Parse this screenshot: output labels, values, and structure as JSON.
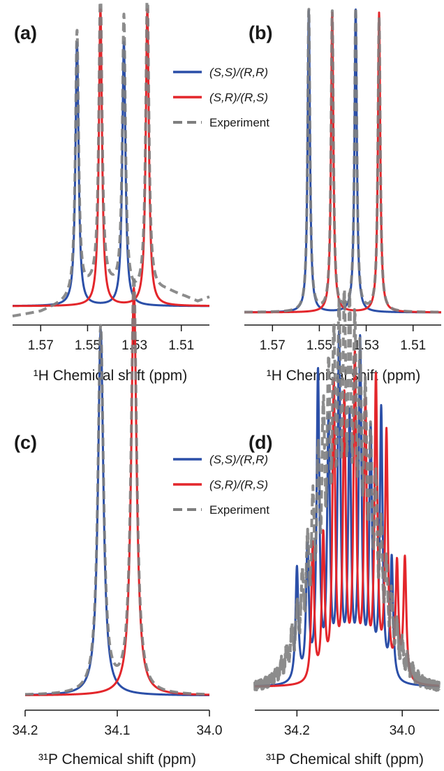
{
  "chart_data": [
    {
      "panel": "(a)",
      "type": "line",
      "xlabel": "¹H Chemical shift (ppm)",
      "xlim": [
        1.582,
        1.498
      ],
      "ylim": [
        0,
        1
      ],
      "x_ticks": [
        1.57,
        1.55,
        1.53,
        1.51
      ],
      "x_tick_labels": [
        "1.57",
        "1.55",
        "1.53",
        "1.51"
      ],
      "legend": true,
      "legend_position": "top-right",
      "series": [
        {
          "name": "(S,S)/(R,R)",
          "color": "#2b4fa8",
          "style": "solid",
          "peaks": [
            {
              "x": 1.5545,
              "height": 0.89,
              "width": 0.0008
            },
            {
              "x": 1.5345,
              "height": 0.89,
              "width": 0.0008
            }
          ],
          "baseline": 0.0
        },
        {
          "name": "(S,R)/(R,S)",
          "color": "#e3262b",
          "style": "solid",
          "peaks": [
            {
              "x": 1.5445,
              "height": 1.0,
              "width": 0.0008
            },
            {
              "x": 1.5245,
              "height": 1.0,
              "width": 0.0008
            }
          ],
          "baseline": 0.0
        },
        {
          "name": "Experiment",
          "color": "#7f7f7f",
          "style": "dashed",
          "peaks": [
            {
              "x": 1.5545,
              "height": 0.89,
              "width": 0.0008
            },
            {
              "x": 1.5445,
              "height": 1.0,
              "width": 0.0008
            },
            {
              "x": 1.5345,
              "height": 0.93,
              "width": 0.0008
            },
            {
              "x": 1.5245,
              "height": 1.02,
              "width": 0.0008
            }
          ],
          "baseline_points": [
            [
              1.582,
              -0.035
            ],
            [
              1.57,
              -0.02
            ],
            [
              1.56,
              0.01
            ],
            [
              1.553,
              0.04
            ],
            [
              1.545,
              0.07
            ],
            [
              1.538,
              0.05
            ],
            [
              1.53,
              0.03
            ],
            [
              1.523,
              0.05
            ],
            [
              1.516,
              0.05
            ],
            [
              1.508,
              0.03
            ],
            [
              1.503,
              0.015
            ],
            [
              1.498,
              0.03
            ]
          ]
        }
      ]
    },
    {
      "panel": "(b)",
      "type": "line",
      "xlabel": "¹H Chemical shift (ppm)",
      "xlim": [
        1.582,
        1.498
      ],
      "ylim": [
        0,
        1
      ],
      "x_ticks": [
        1.57,
        1.55,
        1.53,
        1.51
      ],
      "x_tick_labels": [
        "1.57",
        "1.55",
        "1.53",
        "1.51"
      ],
      "series": [
        {
          "name": "(S,S)/(R,R)",
          "color": "#2b4fa8",
          "style": "solid",
          "peaks": [
            {
              "x": 1.5545,
              "height": 1.0,
              "width": 0.0006
            },
            {
              "x": 1.5345,
              "height": 1.0,
              "width": 0.0006
            }
          ],
          "baseline": 0.0
        },
        {
          "name": "(S,R)/(R,S)",
          "color": "#e3262b",
          "style": "solid",
          "peaks": [
            {
              "x": 1.5445,
              "height": 0.99,
              "width": 0.0006
            },
            {
              "x": 1.5245,
              "height": 0.99,
              "width": 0.0006
            }
          ],
          "baseline": 0.0
        },
        {
          "name": "Experiment",
          "color": "#7f7f7f",
          "style": "dashed",
          "peaks": [
            {
              "x": 1.5545,
              "height": 1.0,
              "width": 0.0006
            },
            {
              "x": 1.5445,
              "height": 0.99,
              "width": 0.0006
            },
            {
              "x": 1.5345,
              "height": 1.0,
              "width": 0.0006
            },
            {
              "x": 1.5245,
              "height": 0.97,
              "width": 0.0006
            }
          ],
          "baseline": 0.0
        }
      ]
    },
    {
      "panel": "(c)",
      "type": "line",
      "xlabel": "³¹P Chemical shift (ppm)",
      "xlim": [
        34.2,
        34.0
      ],
      "ylim": [
        0,
        1
      ],
      "x_ticks": [
        34.2,
        34.1,
        34.0
      ],
      "x_tick_labels": [
        "34.2",
        "34.1",
        "34.0"
      ],
      "legend": true,
      "legend_position": "top-right",
      "series": [
        {
          "name": "(S,S)/(R,R)",
          "color": "#2b4fa8",
          "style": "solid",
          "peaks": [
            {
              "x": 34.118,
              "height": 0.88,
              "width": 0.0035
            }
          ],
          "baseline": 0.0
        },
        {
          "name": "(S,R)/(R,S)",
          "color": "#e3262b",
          "style": "solid",
          "peaks": [
            {
              "x": 34.082,
              "height": 0.98,
              "width": 0.0035
            }
          ],
          "baseline": 0.0
        },
        {
          "name": "Experiment",
          "color": "#7f7f7f",
          "style": "dashed",
          "peaks": [
            {
              "x": 34.118,
              "height": 0.88,
              "width": 0.0036
            },
            {
              "x": 34.082,
              "height": 1.0,
              "width": 0.0036
            }
          ],
          "baseline": 0.0
        }
      ]
    },
    {
      "panel": "(d)",
      "type": "line",
      "xlabel": "³¹P Chemical shift (ppm)",
      "xlim": [
        34.28,
        33.93
      ],
      "ylim": [
        0,
        1
      ],
      "x_ticks": [
        34.2,
        34.0
      ],
      "x_tick_labels": [
        "34.2",
        "34.0"
      ],
      "series": [
        {
          "name": "(S,S)/(R,R)",
          "color": "#2b4fa8",
          "style": "solid",
          "peaks": [
            {
              "x": 34.2,
              "height": 0.28,
              "width": 0.0032
            },
            {
              "x": 34.18,
              "height": 0.32,
              "width": 0.0032
            },
            {
              "x": 34.16,
              "height": 0.75,
              "width": 0.0032
            },
            {
              "x": 34.14,
              "height": 0.62,
              "width": 0.0032
            },
            {
              "x": 34.12,
              "height": 0.83,
              "width": 0.0032
            },
            {
              "x": 34.1,
              "height": 0.63,
              "width": 0.0032
            },
            {
              "x": 34.08,
              "height": 0.82,
              "width": 0.0032
            },
            {
              "x": 34.06,
              "height": 0.6,
              "width": 0.0032
            },
            {
              "x": 34.04,
              "height": 0.66,
              "width": 0.0032
            },
            {
              "x": 34.02,
              "height": 0.3,
              "width": 0.0032
            }
          ],
          "baseline": 0.0
        },
        {
          "name": "(S,R)/(R,S)",
          "color": "#e3262b",
          "style": "solid",
          "peaks": [
            {
              "x": 34.17,
              "height": 0.34,
              "width": 0.0032
            },
            {
              "x": 34.15,
              "height": 0.35,
              "width": 0.0032
            },
            {
              "x": 34.13,
              "height": 0.72,
              "width": 0.0032
            },
            {
              "x": 34.11,
              "height": 0.68,
              "width": 0.0032
            },
            {
              "x": 34.09,
              "height": 0.78,
              "width": 0.0032
            },
            {
              "x": 34.07,
              "height": 0.66,
              "width": 0.0032
            },
            {
              "x": 34.05,
              "height": 0.73,
              "width": 0.0032
            },
            {
              "x": 34.03,
              "height": 0.6,
              "width": 0.0032
            },
            {
              "x": 34.01,
              "height": 0.28,
              "width": 0.0032
            },
            {
              "x": 33.995,
              "height": 0.3,
              "width": 0.0032
            }
          ],
          "baseline": 0.0
        },
        {
          "name": "Experiment",
          "color": "#7f7f7f",
          "style": "dashed",
          "envelope": {
            "center": 34.108,
            "sigma": 0.052,
            "height": 0.97
          },
          "baseline": 0.0
        }
      ]
    }
  ]
}
